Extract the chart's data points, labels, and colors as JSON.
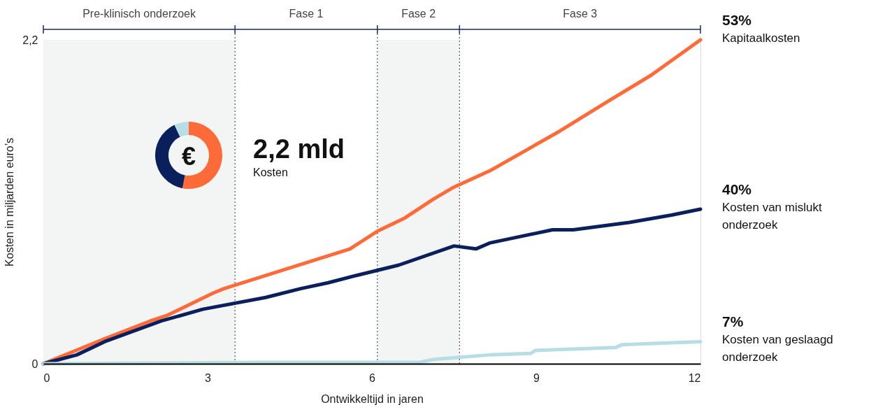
{
  "chart_data": [
    {
      "type": "line",
      "xlabel": "Ontwikkeltijd in jaren",
      "ylabel": "Kosten in miljarden euro’s",
      "xlim": [
        0,
        12
      ],
      "xticks": [
        0,
        3,
        6,
        9,
        12
      ],
      "ylim": [
        0,
        2.2
      ],
      "yticks": [
        0,
        {
          "value": 2.2,
          "label": "2,2"
        }
      ],
      "series": [
        {
          "name": "Kapitaalkosten",
          "color": "#ff6a39",
          "x": [
            0,
            1.12,
            1.95,
            2.27,
            3.1,
            3.3,
            5.6,
            6.1,
            6.6,
            7.13,
            7.5,
            8.15,
            9.43,
            10.3,
            11.1,
            12
          ],
          "values": [
            0,
            0.17,
            0.29,
            0.33,
            0.48,
            0.51,
            0.78,
            0.9,
            0.99,
            1.12,
            1.2,
            1.31,
            1.58,
            1.78,
            1.96,
            2.2
          ]
        },
        {
          "name": "Kosten van mislukt onderzoek",
          "color": "#0a1f5c",
          "x": [
            0,
            0.61,
            1.12,
            2.15,
            2.91,
            4.06,
            4.7,
            5.2,
            5.72,
            6.49,
            7.5,
            7.9,
            8.15,
            9.3,
            9.68,
            10.7,
            11.47,
            12
          ],
          "values": [
            0,
            0.06,
            0.15,
            0.29,
            0.37,
            0.45,
            0.51,
            0.55,
            0.6,
            0.67,
            0.8,
            0.78,
            0.82,
            0.91,
            0.91,
            0.96,
            1.01,
            1.05
          ]
        },
        {
          "name": "Kosten van geslaagd onderzoek",
          "color": "#b7dde5",
          "x": [
            0,
            3.93,
            6.87,
            7.13,
            8.15,
            8.9,
            8.98,
            10.45,
            10.57,
            12
          ],
          "values": [
            0,
            0.01,
            0.01,
            0.03,
            0.06,
            0.07,
            0.09,
            0.11,
            0.13,
            0.15
          ]
        }
      ],
      "bands": [
        {
          "axis": "x",
          "from": 0,
          "to": 3.5,
          "label": "Pre-klinisch onderzoek",
          "color": "#f3f4f4"
        },
        {
          "axis": "x",
          "from": 3.5,
          "to": 6.1,
          "label": "Fase 1",
          "color": "#ffffff"
        },
        {
          "axis": "x",
          "from": 6.1,
          "to": 7.6,
          "label": "Fase 2",
          "color": "#f3f4f4"
        },
        {
          "axis": "x",
          "from": 7.6,
          "to": 12,
          "label": "Fase 3",
          "color": "#ffffff"
        }
      ],
      "ref_lines": [
        {
          "axis": "x",
          "value": 3.5,
          "line_style": "dotted",
          "color": "#555555"
        },
        {
          "axis": "x",
          "value": 6.1,
          "line_style": "dotted",
          "color": "#555555"
        },
        {
          "axis": "x",
          "value": 7.6,
          "line_style": "dotted",
          "color": "#555555"
        }
      ],
      "annotations": [
        "2,2 mld",
        "Kosten",
        "53%",
        "40%",
        "7%"
      ]
    },
    {
      "type": "donut",
      "annotations": [
        "€"
      ],
      "categories": [
        null,
        null,
        null
      ],
      "values": [
        53,
        40,
        7
      ],
      "colors": [
        "#ff6a39",
        "#0a1f5c",
        "#b7dde5"
      ]
    }
  ]
}
